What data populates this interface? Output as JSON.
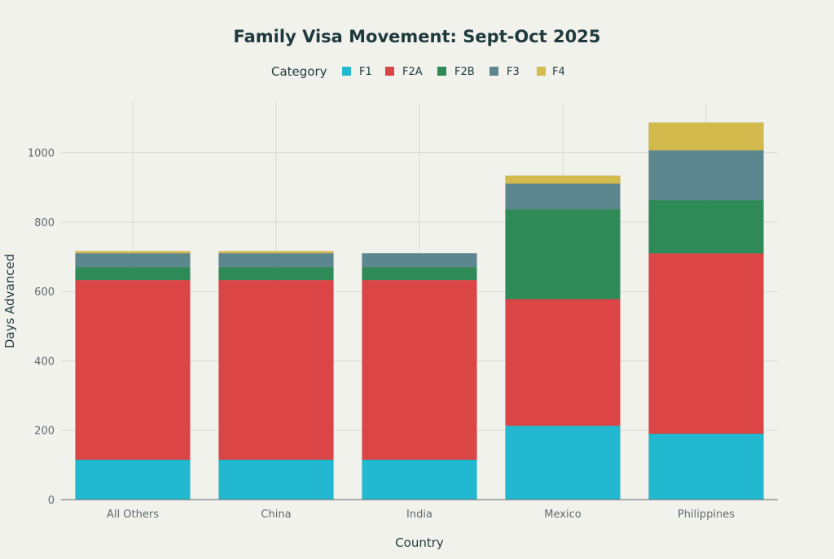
{
  "chart_data": {
    "type": "bar",
    "stacked": true,
    "title": "Family Visa Movement: Sept-Oct 2025",
    "xlabel": "Country",
    "ylabel": "Days Advanced",
    "legend_title": "Category",
    "legend_position": "top",
    "grid": true,
    "ylim": [
      0,
      1147
    ],
    "yticks": [
      0,
      200,
      400,
      600,
      800,
      1000
    ],
    "categories": [
      "All Others",
      "China",
      "India",
      "Mexico",
      "Philippines"
    ],
    "series": [
      {
        "name": "F1",
        "color": "#22b8cf",
        "values": [
          115,
          115,
          115,
          213,
          190
        ]
      },
      {
        "name": "F2A",
        "color": "#db4545",
        "values": [
          518,
          518,
          518,
          365,
          520
        ]
      },
      {
        "name": "F2B",
        "color": "#2e8b57",
        "values": [
          37,
          37,
          37,
          259,
          153
        ]
      },
      {
        "name": "F3",
        "color": "#5d878f",
        "values": [
          40,
          40,
          40,
          74,
          144
        ]
      },
      {
        "name": "F4",
        "color": "#d2ba4c",
        "values": [
          6,
          6,
          0,
          23,
          80
        ]
      }
    ]
  }
}
